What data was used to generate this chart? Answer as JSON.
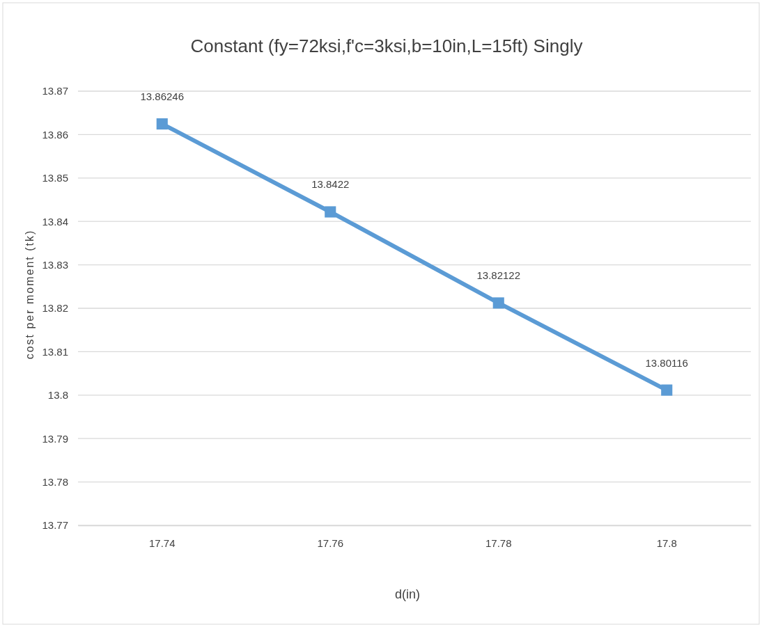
{
  "chart_data": {
    "type": "line",
    "title": "Constant (fy=72ksi,f'c=3ksi,b=10in,L=15ft) Singly",
    "xlabel": "d(in)",
    "ylabel": "cost per moment (tk)",
    "categories": [
      "17.74",
      "17.76",
      "17.78",
      "17.8"
    ],
    "series": [
      {
        "color": "#5b9bd5",
        "values": [
          13.86246,
          13.8422,
          13.82122,
          13.80116
        ]
      }
    ],
    "ylim": [
      13.77,
      13.87
    ],
    "yticks": [
      13.77,
      13.78,
      13.79,
      13.8,
      13.81,
      13.82,
      13.83,
      13.84,
      13.85,
      13.86,
      13.87
    ],
    "grid": "y",
    "marker": "square",
    "line_style": "solid",
    "data_labels": true
  }
}
